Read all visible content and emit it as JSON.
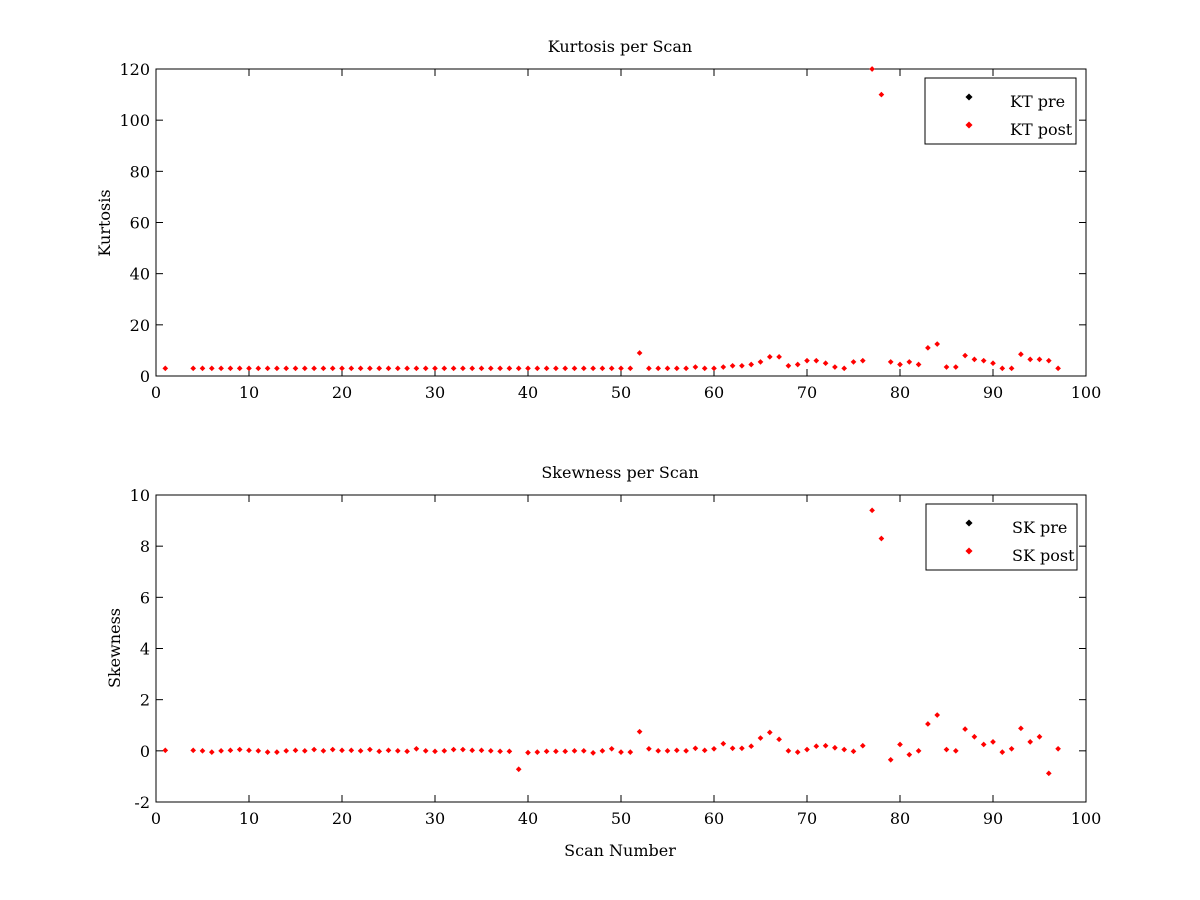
{
  "chart_data": [
    {
      "type": "scatter",
      "title": "Kurtosis per Scan",
      "xlabel": "",
      "ylabel": "Kurtosis",
      "xlim": [
        0,
        100
      ],
      "ylim": [
        0,
        120
      ],
      "xticks": [
        0,
        10,
        20,
        30,
        40,
        50,
        60,
        70,
        80,
        90,
        100
      ],
      "yticks": [
        0,
        20,
        40,
        60,
        80,
        100,
        120
      ],
      "legend_position": "top-right",
      "grid": false,
      "series": [
        {
          "name": "KT pre",
          "color": "#000000",
          "points": []
        },
        {
          "name": "KT post",
          "color": "#ff0000",
          "points": [
            [
              1,
              3
            ],
            [
              4,
              3
            ],
            [
              5,
              3
            ],
            [
              6,
              3
            ],
            [
              7,
              3
            ],
            [
              8,
              3
            ],
            [
              9,
              3
            ],
            [
              10,
              3
            ],
            [
              11,
              3
            ],
            [
              12,
              3
            ],
            [
              13,
              3
            ],
            [
              14,
              3
            ],
            [
              15,
              3
            ],
            [
              16,
              3
            ],
            [
              17,
              3
            ],
            [
              18,
              3
            ],
            [
              19,
              3
            ],
            [
              20,
              3
            ],
            [
              21,
              3
            ],
            [
              22,
              3
            ],
            [
              23,
              3
            ],
            [
              24,
              3
            ],
            [
              25,
              3
            ],
            [
              26,
              3
            ],
            [
              27,
              3
            ],
            [
              28,
              3
            ],
            [
              29,
              3
            ],
            [
              30,
              3
            ],
            [
              31,
              3
            ],
            [
              32,
              3
            ],
            [
              33,
              3
            ],
            [
              34,
              3
            ],
            [
              35,
              3
            ],
            [
              36,
              3
            ],
            [
              37,
              3
            ],
            [
              38,
              3
            ],
            [
              39,
              3
            ],
            [
              40,
              3
            ],
            [
              41,
              3
            ],
            [
              42,
              3
            ],
            [
              43,
              3
            ],
            [
              44,
              3
            ],
            [
              45,
              3
            ],
            [
              46,
              3
            ],
            [
              47,
              3
            ],
            [
              48,
              3
            ],
            [
              49,
              3
            ],
            [
              50,
              3
            ],
            [
              51,
              3
            ],
            [
              52,
              9
            ],
            [
              53,
              3
            ],
            [
              54,
              3
            ],
            [
              55,
              3
            ],
            [
              56,
              3
            ],
            [
              57,
              3
            ],
            [
              58,
              3.5
            ],
            [
              59,
              3
            ],
            [
              60,
              3
            ],
            [
              61,
              3.5
            ],
            [
              62,
              4
            ],
            [
              63,
              4
            ],
            [
              64,
              4.5
            ],
            [
              65,
              5.5
            ],
            [
              66,
              7.5
            ],
            [
              67,
              7.5
            ],
            [
              68,
              4
            ],
            [
              69,
              4.5
            ],
            [
              70,
              6
            ],
            [
              71,
              6
            ],
            [
              72,
              5
            ],
            [
              73,
              3.5
            ],
            [
              74,
              3
            ],
            [
              75,
              5.5
            ],
            [
              76,
              6
            ],
            [
              77,
              120
            ],
            [
              78,
              110
            ],
            [
              79,
              5.5
            ],
            [
              80,
              4.5
            ],
            [
              81,
              5.5
            ],
            [
              82,
              4.5
            ],
            [
              83,
              11
            ],
            [
              84,
              12.5
            ],
            [
              85,
              3.5
            ],
            [
              86,
              3.5
            ],
            [
              87,
              8
            ],
            [
              88,
              6.5
            ],
            [
              89,
              6
            ],
            [
              90,
              5
            ],
            [
              91,
              3
            ],
            [
              92,
              3
            ],
            [
              93,
              8.5
            ],
            [
              94,
              6.5
            ],
            [
              95,
              6.5
            ],
            [
              96,
              6
            ],
            [
              97,
              3
            ]
          ]
        }
      ]
    },
    {
      "type": "scatter",
      "title": "Skewness per Scan",
      "xlabel": "Scan Number",
      "ylabel": "Skewness",
      "xlim": [
        0,
        100
      ],
      "ylim": [
        -2,
        10
      ],
      "xticks": [
        0,
        10,
        20,
        30,
        40,
        50,
        60,
        70,
        80,
        90,
        100
      ],
      "yticks": [
        -2,
        0,
        2,
        4,
        6,
        8,
        10
      ],
      "legend_position": "top-right",
      "grid": false,
      "series": [
        {
          "name": "SK pre",
          "color": "#000000",
          "points": []
        },
        {
          "name": "SK post",
          "color": "#ff0000",
          "points": [
            [
              1,
              0.02
            ],
            [
              4,
              0.02
            ],
            [
              5,
              0
            ],
            [
              6,
              -0.05
            ],
            [
              7,
              0
            ],
            [
              8,
              0.02
            ],
            [
              9,
              0.05
            ],
            [
              10,
              0.02
            ],
            [
              11,
              0
            ],
            [
              12,
              -0.05
            ],
            [
              13,
              -0.05
            ],
            [
              14,
              0
            ],
            [
              15,
              0.02
            ],
            [
              16,
              0
            ],
            [
              17,
              0.05
            ],
            [
              18,
              0
            ],
            [
              19,
              0.05
            ],
            [
              20,
              0.02
            ],
            [
              21,
              0.02
            ],
            [
              22,
              0
            ],
            [
              23,
              0.05
            ],
            [
              24,
              -0.02
            ],
            [
              25,
              0.02
            ],
            [
              26,
              0
            ],
            [
              27,
              -0.02
            ],
            [
              28,
              0.08
            ],
            [
              29,
              0
            ],
            [
              30,
              -0.02
            ],
            [
              31,
              0
            ],
            [
              32,
              0.05
            ],
            [
              33,
              0.05
            ],
            [
              34,
              0.02
            ],
            [
              35,
              0.02
            ],
            [
              36,
              0
            ],
            [
              37,
              -0.02
            ],
            [
              38,
              -0.02
            ],
            [
              39,
              -0.72
            ],
            [
              40,
              -0.07
            ],
            [
              41,
              -0.05
            ],
            [
              42,
              -0.02
            ],
            [
              43,
              -0.02
            ],
            [
              44,
              -0.02
            ],
            [
              45,
              0
            ],
            [
              46,
              0
            ],
            [
              47,
              -0.08
            ],
            [
              48,
              0
            ],
            [
              49,
              0.08
            ],
            [
              50,
              -0.05
            ],
            [
              51,
              -0.05
            ],
            [
              52,
              0.75
            ],
            [
              53,
              0.08
            ],
            [
              54,
              0
            ],
            [
              55,
              0
            ],
            [
              56,
              0.02
            ],
            [
              57,
              0
            ],
            [
              58,
              0.1
            ],
            [
              59,
              0.02
            ],
            [
              60,
              0.08
            ],
            [
              61,
              0.28
            ],
            [
              62,
              0.1
            ],
            [
              63,
              0.1
            ],
            [
              64,
              0.18
            ],
            [
              65,
              0.5
            ],
            [
              66,
              0.72
            ],
            [
              67,
              0.45
            ],
            [
              68,
              0
            ],
            [
              69,
              -0.05
            ],
            [
              70,
              0.05
            ],
            [
              71,
              0.18
            ],
            [
              72,
              0.2
            ],
            [
              73,
              0.12
            ],
            [
              74,
              0.05
            ],
            [
              75,
              -0.02
            ],
            [
              76,
              0.2
            ],
            [
              77,
              9.4
            ],
            [
              78,
              8.3
            ],
            [
              79,
              -0.35
            ],
            [
              80,
              0.25
            ],
            [
              81,
              -0.15
            ],
            [
              82,
              0
            ],
            [
              83,
              1.05
            ],
            [
              84,
              1.4
            ],
            [
              85,
              0.05
            ],
            [
              86,
              0
            ],
            [
              87,
              0.85
            ],
            [
              88,
              0.55
            ],
            [
              89,
              0.25
            ],
            [
              90,
              0.35
            ],
            [
              91,
              -0.05
            ],
            [
              92,
              0.08
            ],
            [
              93,
              0.88
            ],
            [
              94,
              0.35
            ],
            [
              95,
              0.55
            ],
            [
              96,
              -0.88
            ],
            [
              97,
              0.08
            ]
          ]
        }
      ]
    }
  ]
}
